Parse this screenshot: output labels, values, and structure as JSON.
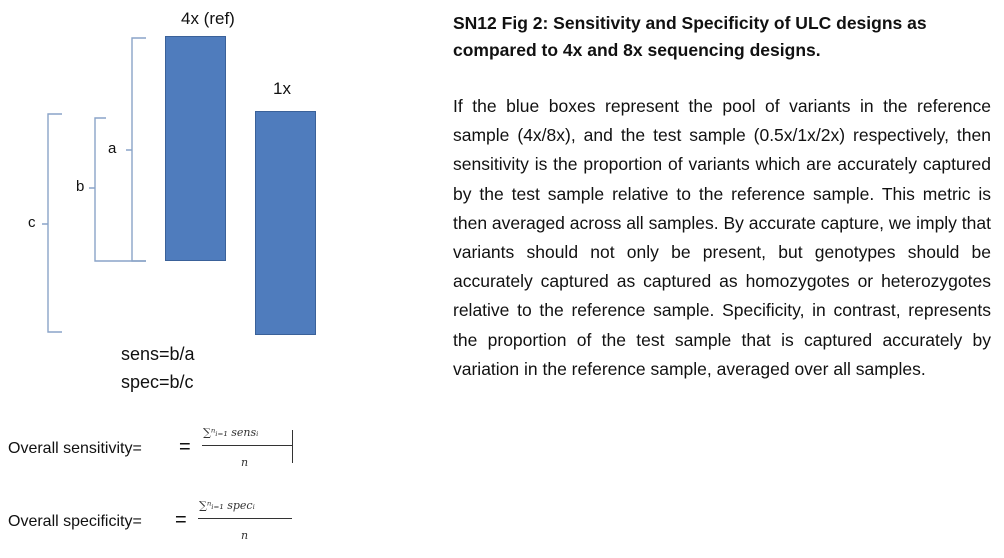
{
  "diagram": {
    "box_ref_label": "4x (ref)",
    "box_test_label": "1x",
    "brace_a": "a",
    "brace_b": "b",
    "brace_c": "c",
    "sens_def": "sens=b/a",
    "spec_def": "spec=b/c",
    "box_color": "#4f7cbd",
    "brace_color": "#8aa4c8"
  },
  "formulas": {
    "sensitivity_label": "Overall sensitivity=",
    "sensitivity_numerator": "∑ⁿᵢ₌₁ sensᵢ",
    "sensitivity_denominator": "n",
    "specificity_label": "Overall specificity=",
    "specificity_numerator": "∑ⁿᵢ₌₁ specᵢ",
    "specificity_denominator": "n"
  },
  "text": {
    "title": "SN12 Fig 2: Sensitivity and Specificity of ULC designs as compared to 4x and 8x sequencing designs.",
    "paragraph": "If the blue boxes represent the pool of variants in the reference sample (4x/8x), and the test sample (0.5x/1x/2x) respectively, then sensitivity is the proportion of variants which are accurately captured by the test sample relative to the reference sample. This metric is then averaged across all samples. By accurate capture, we imply that variants should not only be present, but genotypes should be accurately captured as captured as homozygotes or heterozygotes relative to the reference sample. Specificity, in contrast, represents the proportion of the test sample that is captured accurately by variation in the reference sample, averaged over all samples."
  }
}
